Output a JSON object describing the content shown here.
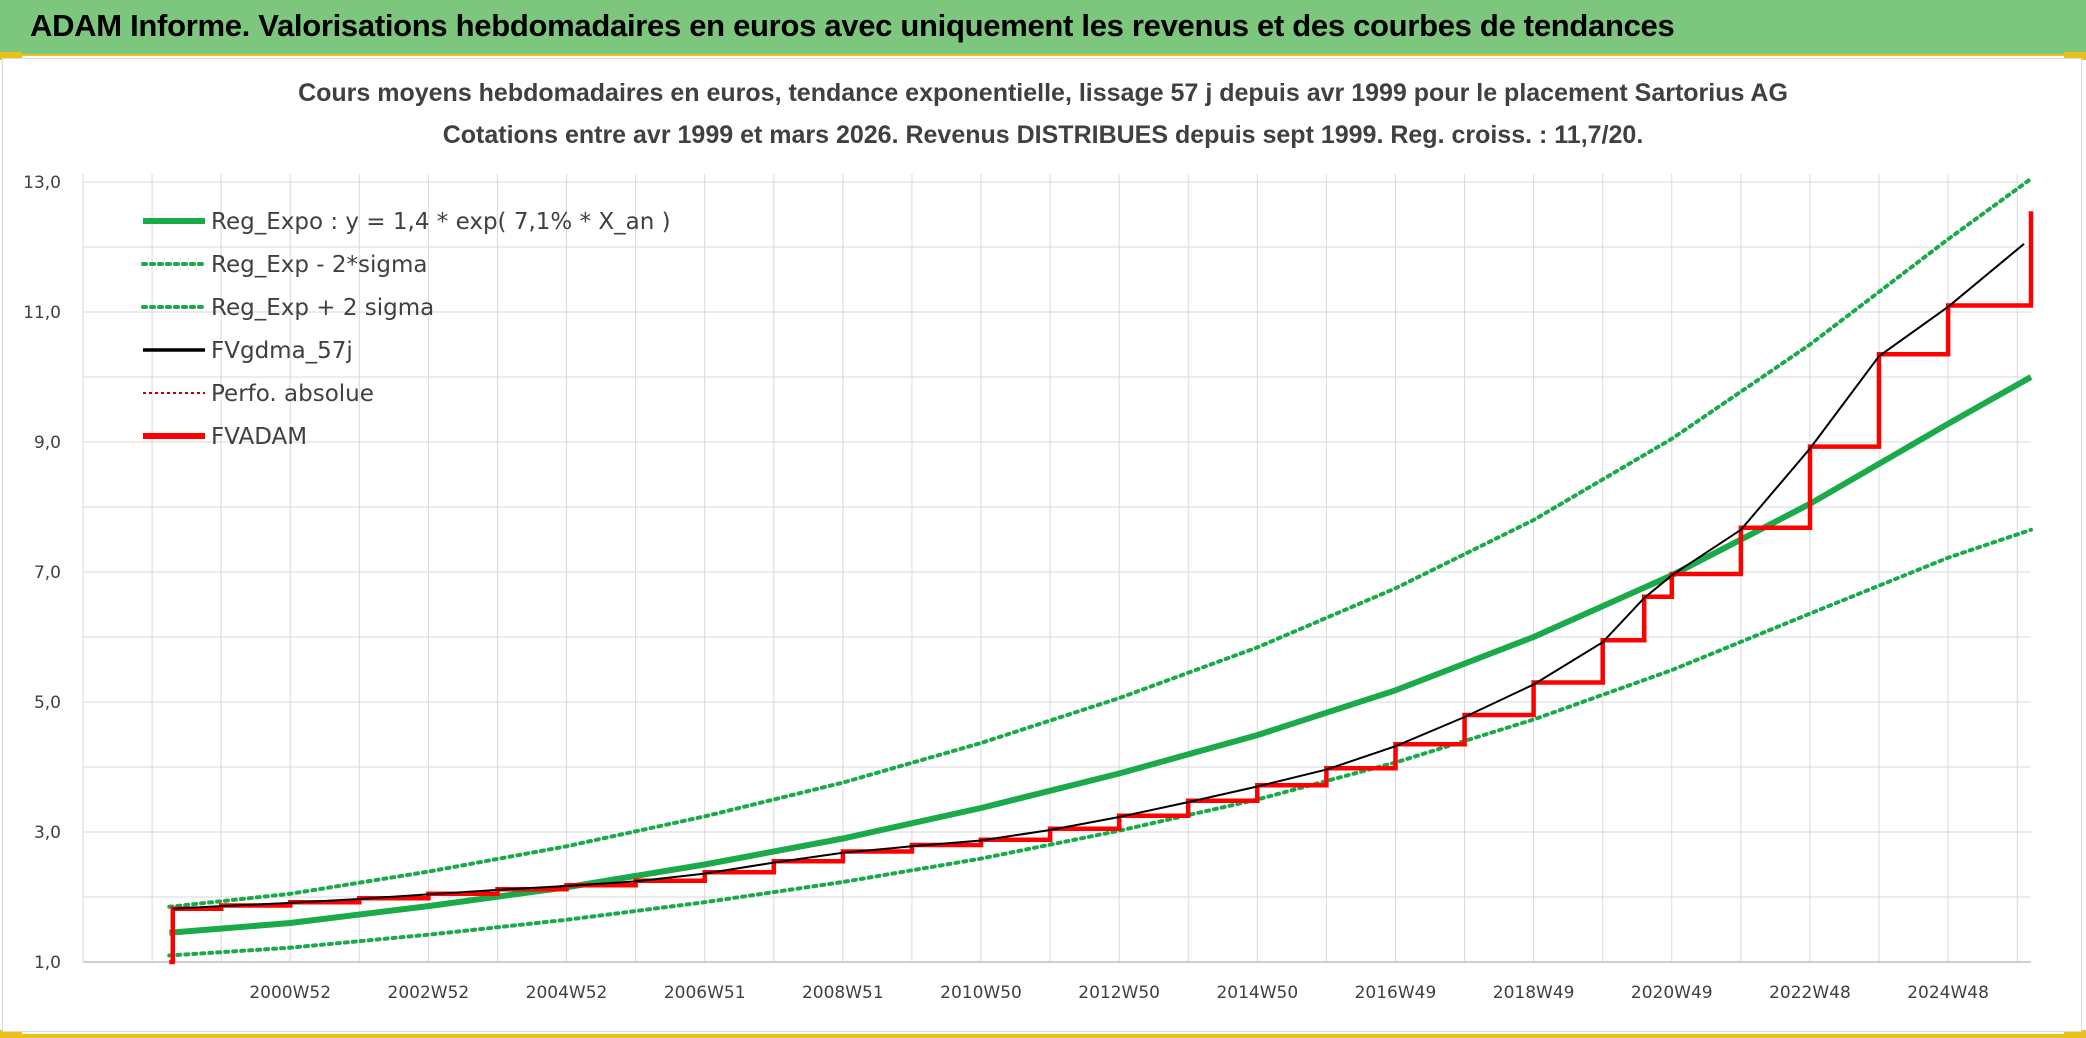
{
  "header": {
    "title": "ADAM Informe. Valorisations hebdomadaires en euros avec uniquement les revenus et des courbes de tendances"
  },
  "colors": {
    "header_bg": "#7dc67d",
    "accent_yellow": "#e8c21a",
    "reg_green": "#1aaa4a",
    "fvadam_red": "#ff0000",
    "fvgdma_black": "#000000",
    "perfo_red": "#c00000",
    "grid": "#d9d9d9"
  },
  "chart_data": {
    "type": "line",
    "title_line1": "Cours moyens hebdomadaires en euros, tendance exponentielle, lissage 57 j depuis avr 1999 pour le placement Sartorius AG",
    "title_line2": "Cotations entre avr 1999 et mars 2026. Revenus DISTRIBUES depuis sept 1999. Reg. croiss. : 11,7/20.",
    "x_range": [
      1998,
      2026.2
    ],
    "ylim": [
      1.0,
      13.0
    ],
    "y_ticks": [
      "1,0",
      "3,0",
      "5,0",
      "7,0",
      "9,0",
      "11,0",
      "13,0"
    ],
    "y_tick_values": [
      1,
      3,
      5,
      7,
      9,
      11,
      13
    ],
    "x_ticks": [
      "2000W52",
      "2002W52",
      "2004W52",
      "2006W51",
      "2008W51",
      "2010W50",
      "2012W50",
      "2014W50",
      "2016W49",
      "2018W49",
      "2020W49",
      "2022W48",
      "2024W48"
    ],
    "x_tick_values": [
      2001,
      2003,
      2005,
      2007,
      2009,
      2011,
      2013,
      2015,
      2017,
      2019,
      2021,
      2023,
      2025
    ],
    "grid": true,
    "legend_position": "top-left",
    "legend": [
      {
        "label": "Reg_Expo : y = 1,4 * exp( 7,1% *  X_an )",
        "color": "#1aaa4a",
        "style": "solid-thick"
      },
      {
        "label": "Reg_Exp - 2*sigma",
        "color": "#1aaa4a",
        "style": "dotted"
      },
      {
        "label": "Reg_Exp + 2 sigma",
        "color": "#1aaa4a",
        "style": "dotted"
      },
      {
        "label": "FVgdma_57j",
        "color": "#000000",
        "style": "solid"
      },
      {
        "label": "Perfo. absolue",
        "color": "#c00000",
        "style": "dotted-thin"
      },
      {
        "label": "FVADAM",
        "color": "#ff0000",
        "style": "solid-thick"
      }
    ],
    "series": [
      {
        "name": "Reg_Expo : y = 1,4 * exp( 7,1% *  X_an )",
        "x": [
          1999.25,
          2001,
          2003,
          2005,
          2007,
          2009,
          2011,
          2013,
          2015,
          2017,
          2019,
          2021,
          2023,
          2025,
          2026.2
        ],
        "values": [
          1.45,
          1.6,
          1.86,
          2.15,
          2.5,
          2.9,
          3.37,
          3.9,
          4.49,
          5.18,
          6.0,
          6.95,
          8.05,
          9.28,
          10.0
        ]
      },
      {
        "name": "Reg_Exp - 2*sigma",
        "x": [
          1999.25,
          2001,
          2003,
          2005,
          2007,
          2009,
          2011,
          2013,
          2015,
          2017,
          2019,
          2021,
          2023,
          2025,
          2026.2
        ],
        "values": [
          1.1,
          1.22,
          1.42,
          1.65,
          1.92,
          2.23,
          2.59,
          3.02,
          3.5,
          4.07,
          4.73,
          5.49,
          6.36,
          7.22,
          7.65
        ]
      },
      {
        "name": "Reg_Exp + 2 sigma",
        "x": [
          1999.25,
          2001,
          2003,
          2005,
          2007,
          2009,
          2011,
          2013,
          2015,
          2017,
          2019,
          2021,
          2023,
          2025,
          2026.2
        ],
        "values": [
          1.85,
          2.05,
          2.39,
          2.78,
          3.24,
          3.76,
          4.37,
          5.06,
          5.84,
          6.75,
          7.8,
          9.05,
          10.5,
          12.12,
          13.05
        ]
      },
      {
        "name": "FVADAM",
        "x": [
          1999.25,
          1999.3,
          2000,
          2001,
          2002,
          2003,
          2004,
          2005,
          2006,
          2007,
          2008,
          2009,
          2010,
          2011,
          2012,
          2013,
          2014,
          2015,
          2016,
          2017,
          2018,
          2019,
          2020,
          2020.6,
          2021,
          2022,
          2023,
          2024,
          2025,
          2026.2
        ],
        "values": [
          1.0,
          1.82,
          1.87,
          1.92,
          1.98,
          2.05,
          2.12,
          2.18,
          2.25,
          2.38,
          2.55,
          2.7,
          2.8,
          2.88,
          3.05,
          3.25,
          3.48,
          3.72,
          3.98,
          4.35,
          4.8,
          5.3,
          5.95,
          6.62,
          6.97,
          7.68,
          8.93,
          10.35,
          11.1,
          12.55
        ]
      },
      {
        "name": "FVgdma_57j",
        "x": [
          1999.3,
          2000,
          2001,
          2002,
          2003,
          2004,
          2005,
          2006,
          2007,
          2008,
          2009,
          2010,
          2011,
          2012,
          2013,
          2014,
          2015,
          2016,
          2017,
          2018,
          2019,
          2020,
          2020.6,
          2021,
          2022,
          2023,
          2024,
          2025,
          2026.1
        ],
        "values": [
          1.82,
          1.86,
          1.91,
          1.97,
          2.04,
          2.11,
          2.17,
          2.24,
          2.36,
          2.53,
          2.68,
          2.78,
          2.87,
          3.03,
          3.23,
          3.46,
          3.7,
          3.96,
          4.32,
          4.77,
          5.27,
          5.92,
          6.6,
          6.95,
          7.65,
          8.9,
          10.32,
          11.08,
          12.05
        ]
      }
    ]
  }
}
